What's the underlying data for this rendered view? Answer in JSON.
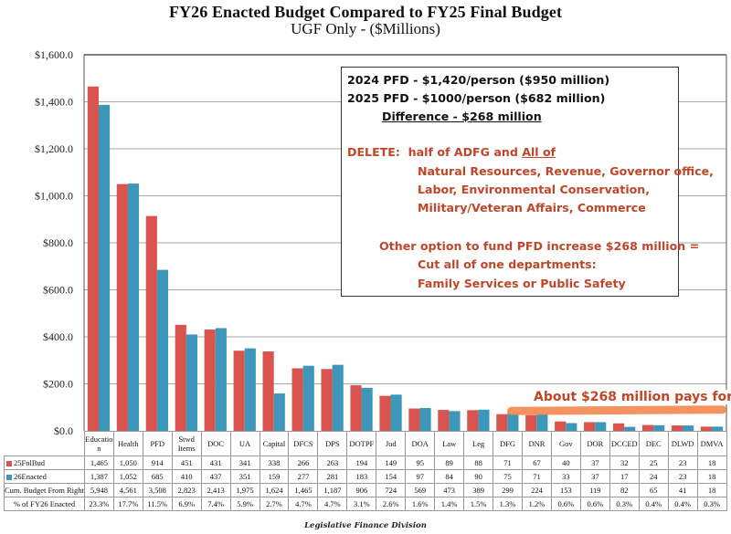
{
  "colors": {
    "fy25": "#d9534f",
    "fy26": "#3c97b8",
    "annot_red": "#c0462a",
    "highlight": "#f4874f"
  },
  "chart_data": {
    "type": "bar",
    "title": "FY26 Enacted Budget Compared to FY25 Final Budget",
    "subtitle": "UGF Only - ($Millions)",
    "xlabel": "",
    "ylabel": "",
    "ylim": [
      0,
      1600
    ],
    "yticks": [
      0,
      200,
      400,
      600,
      800,
      1000,
      1200,
      1400,
      1600
    ],
    "ytick_labels": [
      "$0.0",
      "$200.0",
      "$400.0",
      "$600.0",
      "$800.0",
      "$1,000.0",
      "$1,200.0",
      "$1,400.0",
      "$1,600.0"
    ],
    "grid": true,
    "legend": "table-left",
    "categories": [
      "Education",
      "Health",
      "PFD",
      "Stwd Items",
      "DOC",
      "UA",
      "Capital",
      "DFCS",
      "DPS",
      "DOTPF",
      "Jud",
      "DOA",
      "Law",
      "Leg",
      "DFG",
      "DNR",
      "Gov",
      "DOR",
      "DCCED",
      "DEC",
      "DLWD",
      "DMVA"
    ],
    "category_labels": [
      "Educatio n",
      "Health",
      "PFD",
      "Stwd Items",
      "DOC",
      "UA",
      "Capital",
      "DFCS",
      "DPS",
      "DOTPF",
      "Jud",
      "DOA",
      "Law",
      "Leg",
      "DFG",
      "DNR",
      "Gov",
      "DOR",
      "DCCED",
      "DEC",
      "DLWD",
      "DMVA"
    ],
    "series": [
      {
        "name": "25FnlBud",
        "values": [
          1465,
          1050,
          914,
          451,
          431,
          341,
          338,
          266,
          263,
          194,
          149,
          95,
          89,
          88,
          71,
          67,
          40,
          37,
          32,
          25,
          23,
          18
        ]
      },
      {
        "name": "26Enacted",
        "values": [
          1387,
          1052,
          685,
          410,
          437,
          351,
          159,
          277,
          281,
          183,
          154,
          97,
          84,
          90,
          75,
          71,
          33,
          37,
          17,
          24,
          23,
          18
        ]
      }
    ],
    "table_rows": [
      {
        "label": "25FnlBud",
        "values": [
          "1,465",
          "1,050",
          "914",
          "451",
          "431",
          "341",
          "338",
          "266",
          "263",
          "194",
          "149",
          "95",
          "89",
          "88",
          "71",
          "67",
          "40",
          "37",
          "32",
          "25",
          "23",
          "18"
        ]
      },
      {
        "label": "26Enacted",
        "values": [
          "1,387",
          "1,052",
          "685",
          "410",
          "437",
          "351",
          "159",
          "277",
          "281",
          "183",
          "154",
          "97",
          "84",
          "90",
          "75",
          "71",
          "33",
          "37",
          "17",
          "24",
          "23",
          "18"
        ]
      },
      {
        "label": "Cum. Budget From Right",
        "values": [
          "5,948",
          "4,561",
          "3,508",
          "2,823",
          "2,413",
          "1,975",
          "1,624",
          "1,465",
          "1,187",
          "906",
          "724",
          "569",
          "473",
          "389",
          "299",
          "224",
          "153",
          "119",
          "82",
          "65",
          "41",
          "18"
        ]
      },
      {
        "label": "% of FY26 Enacted",
        "values": [
          "23.3%",
          "17.7%",
          "11.5%",
          "6.9%",
          "7.4%",
          "5.9%",
          "2.7%",
          "4.7%",
          "4.7%",
          "3.1%",
          "2.6%",
          "1.6%",
          "1.4%",
          "1.5%",
          "1.3%",
          "1.2%",
          "0.6%",
          "0.6%",
          "0.3%",
          "0.4%",
          "0.4%",
          "0.3%"
        ]
      }
    ]
  },
  "annotation": {
    "line1": "2024 PFD - $1,420/person ($950 million)",
    "line2": "2025 PFD - $1000/person ($682 million)",
    "line3": "Difference - $268 million",
    "delete_prefix": "DELETE:  half of ADFG and ",
    "delete_underlined": "All of",
    "delete_line2": "Natural Resources, Revenue, Governor office,",
    "delete_line3": "Labor, Environmental Conservation,",
    "delete_line4": "Military/Veteran Affairs, Commerce",
    "option_line1": "Other option to fund PFD increase $268 million =",
    "option_line2": "Cut all of one departments:",
    "option_line3": "Family Services or Public Safety"
  },
  "pays_note": "About $268 million pays for:",
  "footer": "Legislative Finance Division"
}
